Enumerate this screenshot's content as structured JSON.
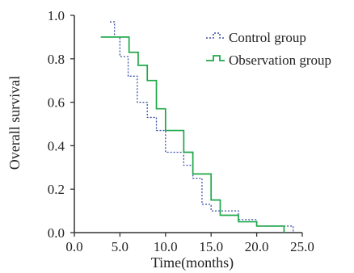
{
  "chart_data": {
    "type": "line",
    "subtype": "kaplan-meier step",
    "title": "",
    "xlabel": "Time(months)",
    "ylabel": "Overall survival",
    "xlim": [
      0,
      25
    ],
    "ylim": [
      0,
      1
    ],
    "x_ticks": [
      "0.0",
      "5.0",
      "10.0",
      "15.0",
      "20.0",
      "25.0"
    ],
    "y_ticks": [
      "0.0",
      "0.2",
      "0.4",
      "0.6",
      "0.8",
      "1.0"
    ],
    "grid": false,
    "legend_position": "top-right",
    "series": [
      {
        "name": "Control group",
        "color": "#3b4fa8",
        "line_style": "dotted",
        "points": [
          {
            "x": 3.9,
            "y": 0.97
          },
          {
            "x": 4.4,
            "y": 0.9
          },
          {
            "x": 5.0,
            "y": 0.81
          },
          {
            "x": 5.9,
            "y": 0.72
          },
          {
            "x": 6.9,
            "y": 0.6
          },
          {
            "x": 8.0,
            "y": 0.53
          },
          {
            "x": 9.0,
            "y": 0.47
          },
          {
            "x": 10.0,
            "y": 0.37
          },
          {
            "x": 12.0,
            "y": 0.31
          },
          {
            "x": 13.0,
            "y": 0.25
          },
          {
            "x": 14.0,
            "y": 0.13
          },
          {
            "x": 15.0,
            "y": 0.1
          },
          {
            "x": 18.0,
            "y": 0.06
          },
          {
            "x": 20.0,
            "y": 0.03
          },
          {
            "x": 23.0,
            "y": 0.03
          },
          {
            "x": 24.0,
            "y": 0.0
          }
        ]
      },
      {
        "name": "Observation group",
        "color": "#1fa84a",
        "line_style": "solid",
        "points": [
          {
            "x": 2.9,
            "y": 0.9
          },
          {
            "x": 6.0,
            "y": 0.83
          },
          {
            "x": 7.0,
            "y": 0.77
          },
          {
            "x": 8.0,
            "y": 0.7
          },
          {
            "x": 9.0,
            "y": 0.57
          },
          {
            "x": 10.0,
            "y": 0.47
          },
          {
            "x": 12.0,
            "y": 0.37
          },
          {
            "x": 13.0,
            "y": 0.27
          },
          {
            "x": 15.0,
            "y": 0.15
          },
          {
            "x": 16.0,
            "y": 0.08
          },
          {
            "x": 18.0,
            "y": 0.05
          },
          {
            "x": 20.0,
            "y": 0.03
          },
          {
            "x": 23.0,
            "y": 0.0
          }
        ]
      }
    ]
  }
}
